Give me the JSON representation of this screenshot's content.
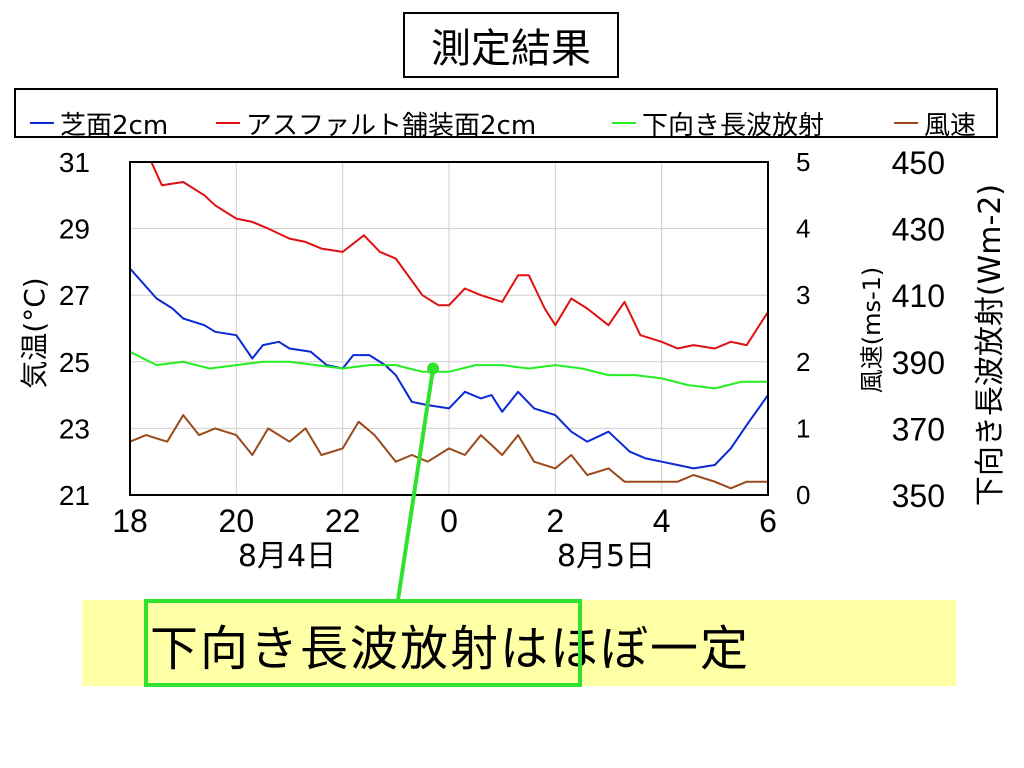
{
  "page": {
    "title": "測定結果"
  },
  "callout": {
    "text": "下向き長波放射はほぼ一定"
  },
  "legend": {
    "items": [
      {
        "label": "芝面2cm",
        "color": "#0a2ad4"
      },
      {
        "label": "アスファルト舗装面2cm",
        "color": "#e01010"
      },
      {
        "label": "下向き長波放射",
        "color": "#22ee22"
      },
      {
        "label": "風速",
        "color": "#9a4a1a"
      }
    ]
  },
  "chart_data": {
    "type": "line",
    "x_ticks": [
      "18",
      "20",
      "22",
      "0",
      "2",
      "4",
      "6"
    ],
    "x_dates": [
      "8月4日",
      "8月5日"
    ],
    "xlim": [
      18,
      30
    ],
    "axes": {
      "left": {
        "label": "気温(°C)",
        "ylim": [
          21,
          31
        ],
        "ticks": [
          "21",
          "23",
          "25",
          "27",
          "29",
          "31"
        ]
      },
      "right1": {
        "label": "風速(ms-1)",
        "ylim": [
          0,
          5
        ],
        "ticks": [
          "0",
          "1",
          "2",
          "3",
          "4",
          "5"
        ]
      },
      "right2": {
        "label": "下向き長波放射(Wm-2)",
        "ylim": [
          350,
          450
        ],
        "ticks": [
          "350",
          "370",
          "390",
          "410",
          "430",
          "450"
        ]
      }
    },
    "grid": true,
    "series": [
      {
        "name": "芝面2cm",
        "axis": "left",
        "color": "#0a2ad4",
        "x": [
          18.0,
          18.5,
          18.8,
          19.0,
          19.4,
          19.6,
          20.0,
          20.3,
          20.5,
          20.8,
          21.0,
          21.4,
          21.7,
          22.0,
          22.2,
          22.5,
          22.8,
          23.0,
          23.3,
          23.6,
          24.0,
          24.3,
          24.6,
          24.8,
          25.0,
          25.3,
          25.6,
          26.0,
          26.3,
          26.6,
          27.0,
          27.4,
          27.7,
          28.0,
          28.3,
          28.6,
          29.0,
          29.3,
          29.6,
          30.0
        ],
        "values": [
          27.8,
          26.9,
          26.6,
          26.3,
          26.1,
          25.9,
          25.8,
          25.1,
          25.5,
          25.6,
          25.4,
          25.3,
          24.9,
          24.8,
          25.2,
          25.2,
          24.9,
          24.6,
          23.8,
          23.7,
          23.6,
          24.1,
          23.9,
          24.0,
          23.5,
          24.1,
          23.6,
          23.4,
          22.9,
          22.6,
          22.9,
          22.3,
          22.1,
          22.0,
          21.9,
          21.8,
          21.9,
          22.4,
          23.1,
          24.0
        ]
      },
      {
        "name": "アスファルト舗装面2cm",
        "axis": "left",
        "color": "#e01010",
        "x": [
          18.4,
          18.6,
          19.0,
          19.4,
          19.6,
          20.0,
          20.3,
          20.6,
          21.0,
          21.3,
          21.6,
          22.0,
          22.4,
          22.7,
          23.0,
          23.5,
          23.8,
          24.0,
          24.3,
          24.6,
          25.0,
          25.3,
          25.5,
          25.8,
          26.0,
          26.3,
          26.6,
          27.0,
          27.3,
          27.6,
          28.0,
          28.3,
          28.6,
          29.0,
          29.3,
          29.6,
          30.0
        ],
        "values": [
          31.0,
          30.3,
          30.4,
          30.0,
          29.7,
          29.3,
          29.2,
          29.0,
          28.7,
          28.6,
          28.4,
          28.3,
          28.8,
          28.3,
          28.1,
          27.0,
          26.7,
          26.7,
          27.2,
          27.0,
          26.8,
          27.6,
          27.6,
          26.6,
          26.1,
          26.9,
          26.6,
          26.1,
          26.8,
          25.8,
          25.6,
          25.4,
          25.5,
          25.4,
          25.6,
          25.5,
          26.5
        ]
      },
      {
        "name": "下向き長波放射",
        "axis": "right2",
        "color": "#22ee22",
        "x": [
          18.0,
          18.5,
          19.0,
          19.5,
          20.0,
          20.5,
          21.0,
          21.5,
          22.0,
          22.5,
          23.0,
          23.5,
          24.0,
          24.5,
          25.0,
          25.5,
          26.0,
          26.5,
          27.0,
          27.5,
          28.0,
          28.5,
          29.0,
          29.5,
          30.0
        ],
        "values": [
          393,
          389,
          390,
          388,
          389,
          390,
          390,
          389,
          388,
          389,
          389,
          387,
          387,
          389,
          389,
          388,
          389,
          388,
          386,
          386,
          385,
          383,
          382,
          384,
          384
        ]
      },
      {
        "name": "風速",
        "axis": "right1",
        "color": "#9a4a1a",
        "x": [
          18.0,
          18.3,
          18.7,
          19.0,
          19.3,
          19.6,
          20.0,
          20.3,
          20.6,
          21.0,
          21.3,
          21.6,
          22.0,
          22.3,
          22.6,
          23.0,
          23.3,
          23.6,
          24.0,
          24.3,
          24.6,
          25.0,
          25.3,
          25.6,
          26.0,
          26.3,
          26.6,
          27.0,
          27.3,
          27.6,
          28.0,
          28.3,
          28.6,
          29.0,
          29.3,
          29.6,
          30.0
        ],
        "values": [
          0.8,
          0.9,
          0.8,
          1.2,
          0.9,
          1.0,
          0.9,
          0.6,
          1.0,
          0.8,
          1.0,
          0.6,
          0.7,
          1.1,
          0.9,
          0.5,
          0.6,
          0.5,
          0.7,
          0.6,
          0.9,
          0.6,
          0.9,
          0.5,
          0.4,
          0.6,
          0.3,
          0.4,
          0.2,
          0.2,
          0.2,
          0.2,
          0.3,
          0.2,
          0.1,
          0.2,
          0.2
        ]
      }
    ],
    "annotations": [
      {
        "text": "下向き長波放射はほぼ一定",
        "target_x": 23.7,
        "target_value": 388,
        "axis": "right2"
      }
    ]
  }
}
